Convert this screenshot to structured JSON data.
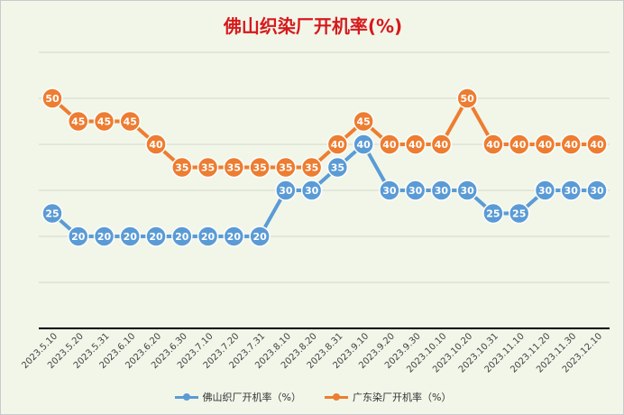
{
  "chart_data": {
    "type": "line",
    "title": "佛山织染厂开机率(%)",
    "categories": [
      "2023.5.10",
      "2023.5.20",
      "2023.5.31",
      "2023.6.10",
      "2023.6.20",
      "2023.6.30",
      "2023.7.10",
      "2023.7.20",
      "2023.7.31",
      "2023.8.10",
      "2023.8.20",
      "2023.8.31",
      "2023.9.10",
      "2023.9.20",
      "2023.9.30",
      "2023.10.10",
      "2023.10.20",
      "2023.10.31",
      "2023.11.10",
      "2023.11.20",
      "2023.11.30",
      "2023.12.10"
    ],
    "series": [
      {
        "name": "佛山织厂开机率（%）",
        "color": "#5b9bd5",
        "values": [
          25,
          20,
          20,
          20,
          20,
          20,
          20,
          20,
          20,
          30,
          30,
          35,
          40,
          30,
          30,
          30,
          30,
          25,
          25,
          30,
          30,
          30
        ]
      },
      {
        "name": "广东染厂开机率（%）",
        "color": "#ed7d31",
        "values": [
          50,
          45,
          45,
          45,
          40,
          35,
          35,
          35,
          35,
          35,
          35,
          40,
          45,
          40,
          40,
          40,
          50,
          40,
          40,
          40,
          40,
          40
        ]
      }
    ],
    "ylim": [
      0,
      60
    ],
    "gridlines": true,
    "y_axis_labels_visible": false,
    "data_labels": true,
    "legend_position": "bottom"
  }
}
